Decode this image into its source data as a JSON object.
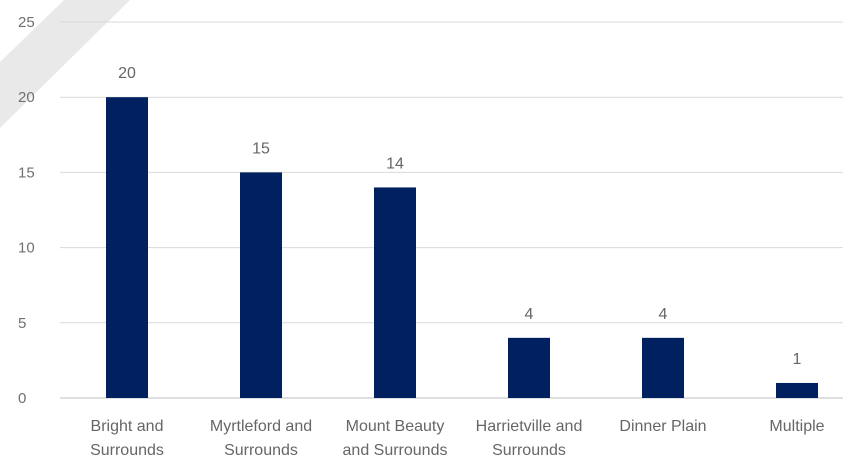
{
  "chart_data": {
    "type": "bar",
    "categories": [
      [
        "Bright and",
        "Surrounds"
      ],
      [
        "Myrtleford and",
        "Surrounds"
      ],
      [
        "Mount Beauty",
        "and Surrounds"
      ],
      [
        "Harrietville and",
        "Surrounds"
      ],
      [
        "Dinner Plain"
      ],
      [
        "Multiple"
      ]
    ],
    "values": [
      20,
      15,
      14,
      4,
      4,
      1
    ],
    "data_labels": [
      "20",
      "15",
      "14",
      "4",
      "4",
      "1"
    ],
    "y_ticks": [
      0,
      5,
      10,
      15,
      20,
      25
    ],
    "ylim": [
      0,
      25
    ],
    "grid": true,
    "legend": "none",
    "bar_color": "#002060",
    "watermark_color": "#e8e8e8"
  }
}
